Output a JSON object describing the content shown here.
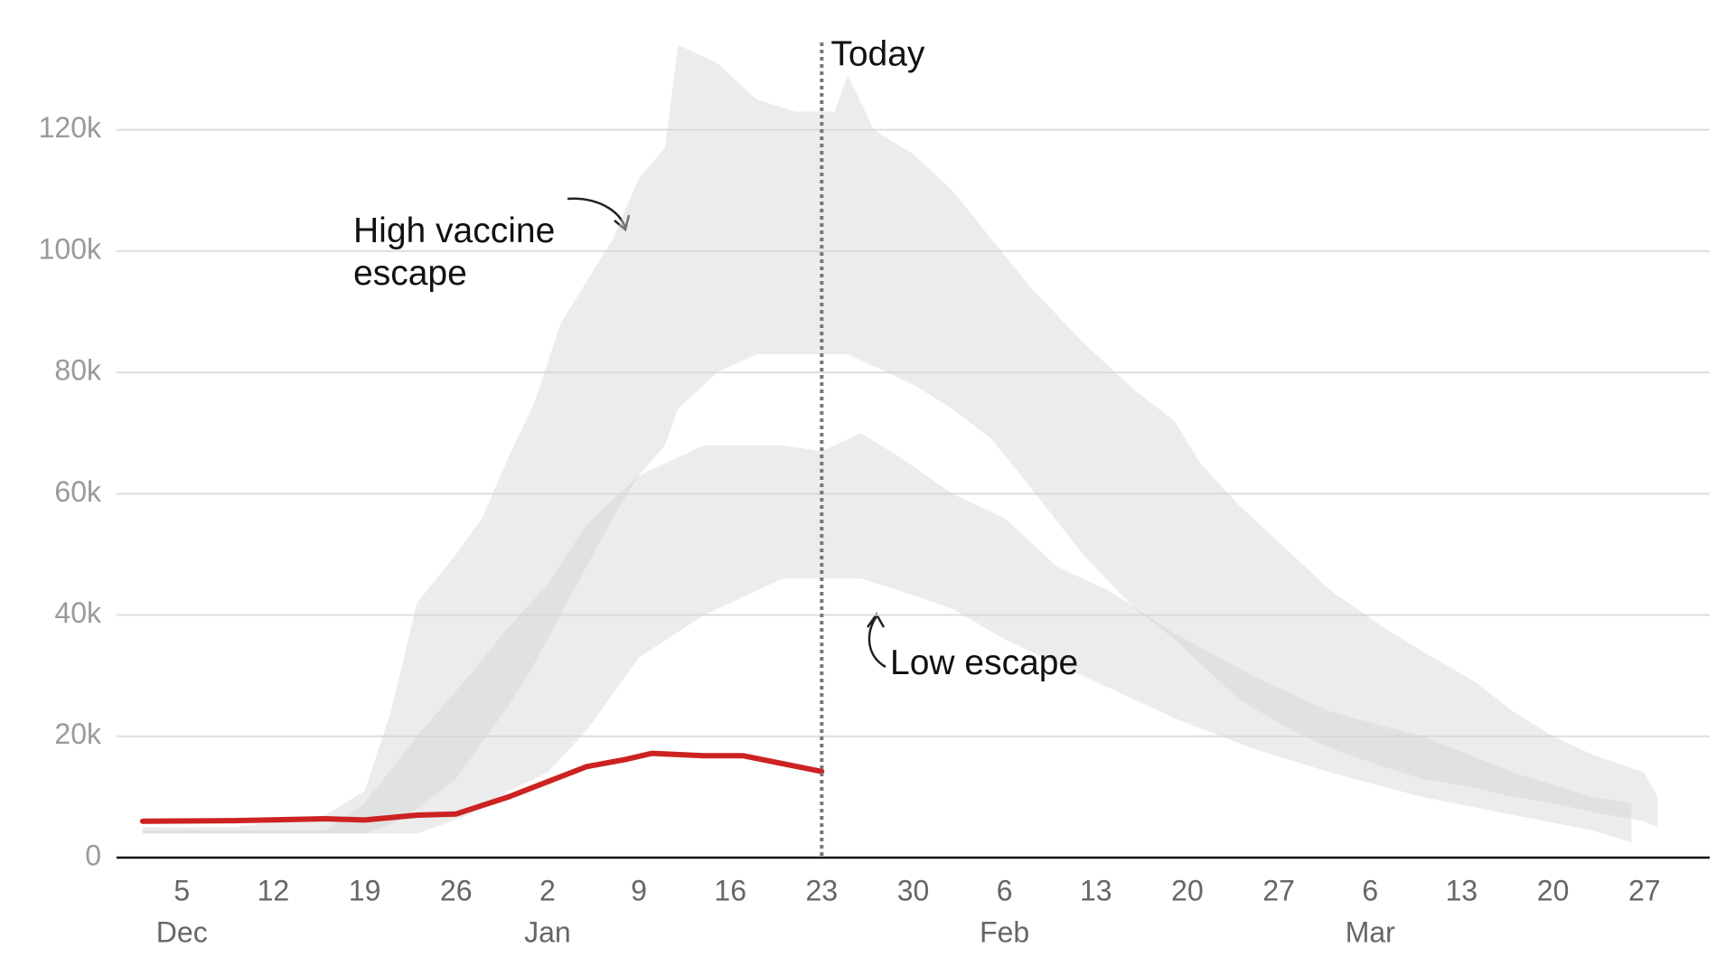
{
  "chart_data": {
    "type": "band-line",
    "xlim": [
      "Nov 30",
      "Apr 1"
    ],
    "ylim": [
      0,
      135000
    ],
    "yticks": [
      0,
      {
        "value": 20000,
        "label": "20k"
      },
      {
        "value": 40000,
        "label": "40k"
      },
      {
        "value": 60000,
        "label": "60k"
      },
      {
        "value": 80000,
        "label": "80k"
      },
      {
        "value": 100000,
        "label": "100k"
      },
      {
        "value": 120000,
        "label": "120k"
      }
    ],
    "xticks": [
      {
        "value": "Dec 5",
        "label": "5"
      },
      {
        "value": "Dec 12",
        "label": "12"
      },
      {
        "value": "Dec 19",
        "label": "19"
      },
      {
        "value": "Dec 26",
        "label": "26"
      },
      {
        "value": "Jan 2",
        "label": "2"
      },
      {
        "value": "Jan 9",
        "label": "9"
      },
      {
        "value": "Jan 16",
        "label": "16"
      },
      {
        "value": "Jan 23",
        "label": "23"
      },
      {
        "value": "Jan 30",
        "label": "30"
      },
      {
        "value": "Feb 6",
        "label": "6"
      },
      {
        "value": "Feb 13",
        "label": "13"
      },
      {
        "value": "Feb 20",
        "label": "20"
      },
      {
        "value": "Feb 27",
        "label": "27"
      },
      {
        "value": "Mar 6",
        "label": "6"
      },
      {
        "value": "Mar 13",
        "label": "13"
      },
      {
        "value": "Mar 20",
        "label": "20"
      },
      {
        "value": "Mar 27",
        "label": "27"
      }
    ],
    "x_month_labels": [
      {
        "value": "Dec 5",
        "label": "Dec"
      },
      {
        "value": "Jan 2",
        "label": "Jan"
      },
      {
        "value": "Feb 6",
        "label": "Feb"
      },
      {
        "value": "Mar 6",
        "label": "Mar"
      }
    ],
    "grid": true,
    "today": {
      "x": "Jan 23",
      "label": "Today"
    },
    "series": [
      {
        "kind": "band",
        "name": "High vaccine\nescape",
        "color": "#d4d4d4",
        "x": [
          "Dec 2",
          "Dec 9",
          "Dec 16",
          "Dec 19",
          "Dec 21",
          "Dec 23",
          "Dec 26",
          "Dec 28",
          "Dec 30",
          "Jan 1",
          "Jan 3",
          "Jan 5",
          "Jan 7",
          "Jan 9",
          "Jan 11",
          "Jan 12",
          "Jan 15",
          "Jan 18",
          "Jan 21",
          "Jan 24",
          "Jan 25",
          "Jan 27",
          "Jan 30",
          "Feb 2",
          "Feb 5",
          "Feb 8",
          "Feb 12",
          "Feb 16",
          "Feb 19",
          "Feb 21",
          "Feb 24",
          "Feb 28",
          "Mar 3",
          "Mar 7",
          "Mar 10",
          "Mar 14",
          "Mar 17",
          "Mar 20",
          "Mar 23",
          "Mar 27",
          "Mar 28"
        ],
        "lower": [
          4000,
          4000,
          4000,
          4000,
          5500,
          8000,
          13000,
          19000,
          25000,
          32000,
          40000,
          48000,
          56000,
          63000,
          68000,
          74000,
          80000,
          83000,
          83000,
          83000,
          83000,
          81000,
          78000,
          74000,
          69000,
          61000,
          50000,
          41000,
          36000,
          32000,
          26000,
          21000,
          18000,
          15000,
          13000,
          11500,
          10000,
          9000,
          7500,
          6000,
          5000
        ],
        "upper": [
          5000,
          5000,
          7000,
          11000,
          24000,
          42000,
          50000,
          56000,
          66000,
          75000,
          88000,
          95000,
          102000,
          112000,
          117000,
          134000,
          131000,
          125000,
          123000,
          123000,
          129000,
          120000,
          116000,
          110000,
          102000,
          94000,
          85000,
          77000,
          72000,
          65000,
          58000,
          50000,
          44000,
          38000,
          34000,
          29000,
          24000,
          20000,
          17000,
          14000,
          10000
        ]
      },
      {
        "kind": "band",
        "name": "Low escape",
        "color": "#d4d4d4",
        "x": [
          "Dec 2",
          "Dec 9",
          "Dec 16",
          "Dec 19",
          "Dec 23",
          "Dec 27",
          "Dec 30",
          "Jan 2",
          "Jan 5",
          "Jan 9",
          "Jan 14",
          "Jan 20",
          "Jan 23",
          "Jan 26",
          "Jan 29",
          "Feb 2",
          "Feb 6",
          "Feb 10",
          "Feb 14",
          "Feb 19",
          "Feb 25",
          "Mar 3",
          "Mar 10",
          "Mar 17",
          "Mar 23",
          "Mar 26"
        ],
        "lower": [
          4000,
          4000,
          4000,
          4000,
          4000,
          7000,
          11000,
          14000,
          21000,
          33000,
          40000,
          46000,
          46000,
          46000,
          44000,
          41000,
          36000,
          32000,
          28000,
          23000,
          18000,
          14000,
          10000,
          7000,
          4500,
          2500
        ],
        "upper": [
          4500,
          4500,
          4500,
          9000,
          20000,
          30000,
          38000,
          45000,
          55000,
          63000,
          68000,
          68000,
          67000,
          70000,
          66000,
          60000,
          56000,
          48000,
          44000,
          37000,
          30000,
          24000,
          20000,
          14000,
          10000,
          9000
        ]
      },
      {
        "kind": "line",
        "color": "#cc2222",
        "x": [
          "Dec 2",
          "Dec 9",
          "Dec 16",
          "Dec 19",
          "Dec 23",
          "Dec 26",
          "Dec 30",
          "Jan 2",
          "Jan 5",
          "Jan 8",
          "Jan 10",
          "Jan 14",
          "Jan 17",
          "Jan 23"
        ],
        "values": [
          6000,
          6100,
          6400,
          6200,
          7000,
          7200,
          10000,
          12500,
          15000,
          16200,
          17200,
          16800,
          16800,
          14200
        ]
      }
    ]
  }
}
